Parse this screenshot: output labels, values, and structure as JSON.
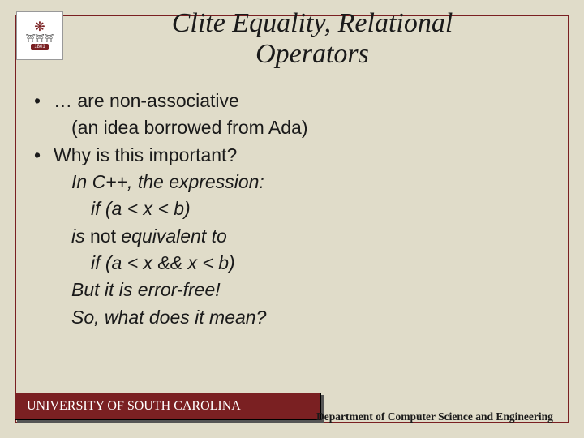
{
  "title_line1": "Clite Equality, Relational",
  "title_line2": "Operators",
  "bullets": {
    "b1": "… are non-associative",
    "b1_sub": "(an idea borrowed from Ada)",
    "b2": "Why is this important?",
    "b2_l1": "In C++, the expression:",
    "b2_l2": "if (a < x < b)",
    "b2_l3_prefix": "is ",
    "b2_l3_not": "not",
    "b2_l3_suffix": " equivalent to",
    "b2_l4": "if (a < x && x < b)",
    "b2_l5": "But it is error-free!",
    "b2_l6": "So, what does it mean?"
  },
  "footer": {
    "left": "UNIVERSITY OF SOUTH CAROLINA",
    "right": "Department of Computer Science and Engineering"
  },
  "logo": {
    "year": "1801"
  },
  "colors": {
    "background": "#e0dcc9",
    "accent": "#7a2022",
    "text": "#1a1a1a"
  }
}
